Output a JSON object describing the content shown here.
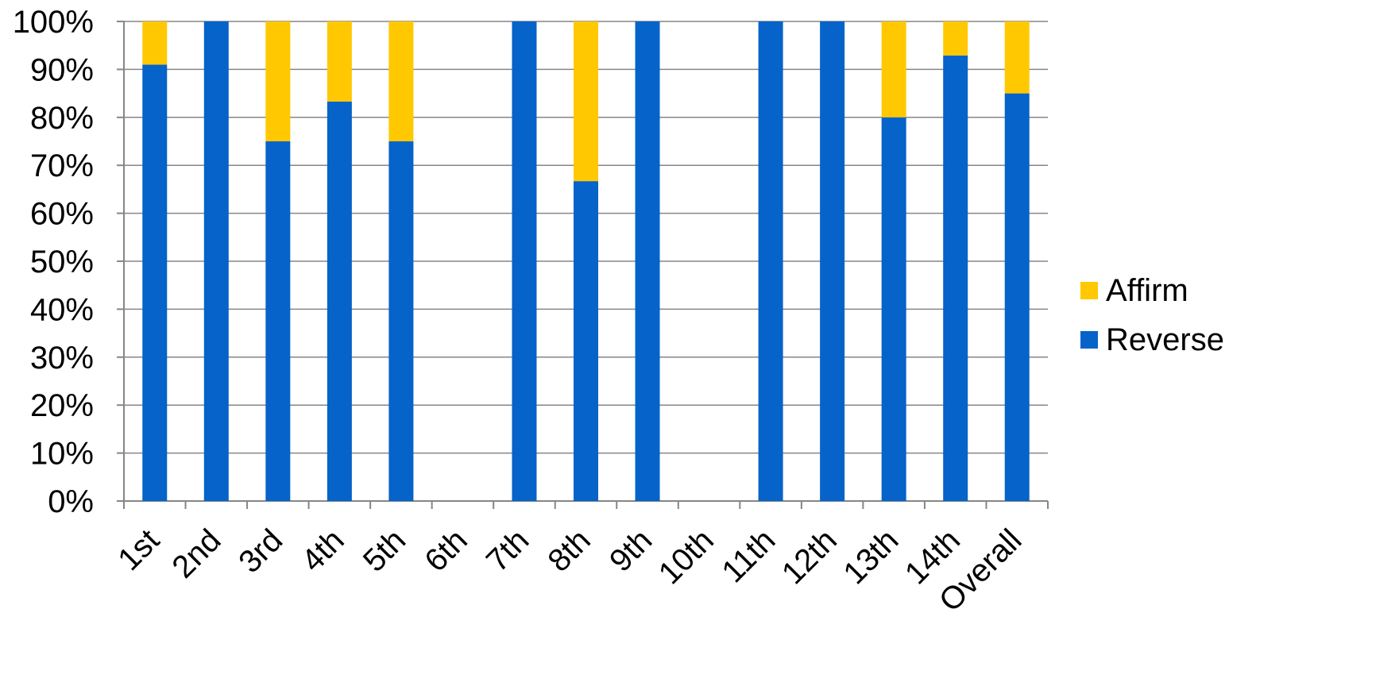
{
  "chart_data": {
    "type": "bar",
    "stacked": true,
    "percent_stacked": true,
    "categories": [
      "1st",
      "2nd",
      "3rd",
      "4th",
      "5th",
      "6th",
      "7th",
      "8th",
      "9th",
      "10th",
      "11th",
      "12th",
      "13th",
      "14th",
      "Overall"
    ],
    "series": [
      {
        "name": "Reverse",
        "color": "#0563C9",
        "values": [
          91,
          100,
          75,
          83.3,
          75,
          null,
          100,
          66.7,
          100,
          null,
          100,
          100,
          80,
          92.9,
          85
        ]
      },
      {
        "name": "Affirm",
        "color": "#FFC800",
        "values": [
          9,
          0,
          25,
          16.7,
          25,
          null,
          0,
          33.3,
          0,
          null,
          0,
          0,
          20,
          7.1,
          15
        ]
      }
    ],
    "y_ticks": [
      "0%",
      "10%",
      "20%",
      "30%",
      "40%",
      "50%",
      "60%",
      "70%",
      "80%",
      "90%",
      "100%"
    ],
    "ylim": [
      0,
      100
    ],
    "grid": true,
    "legend": {
      "position": "right",
      "entries": [
        "Affirm",
        "Reverse"
      ]
    },
    "title": "",
    "xlabel": "",
    "ylabel": ""
  }
}
